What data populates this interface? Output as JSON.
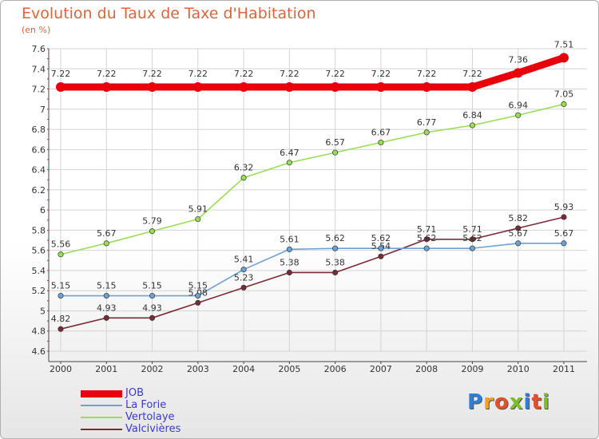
{
  "header": {
    "title": "Evolution du Taux de Taxe d'Habitation",
    "units": "(en %)"
  },
  "chart_data": {
    "type": "line",
    "title": "Evolution du Taux de Taxe d'Habitation",
    "ylabel": "(en %)",
    "xlabel": "",
    "x": [
      "2000",
      "2001",
      "2002",
      "2003",
      "2004",
      "2005",
      "2006",
      "2007",
      "2008",
      "2009",
      "2010",
      "2011"
    ],
    "ylim": [
      4.6,
      7.6
    ],
    "yticks": [
      "4.6",
      "4.8",
      "5",
      "5.2",
      "5.4",
      "5.6",
      "5.8",
      "6",
      "6.2",
      "6.4",
      "6.6",
      "6.8",
      "7",
      "7.2",
      "7.4",
      "7.6"
    ],
    "grid": true,
    "legend_position": "bottom-left",
    "series": [
      {
        "name": "JOB",
        "color": "#e8000b",
        "values": [
          7.22,
          7.22,
          7.22,
          7.22,
          7.22,
          7.22,
          7.22,
          7.22,
          7.22,
          7.22,
          7.36,
          7.51
        ],
        "labels": [
          "7.22",
          "7.22",
          "7.22",
          "7.22",
          "7.22",
          "7.22",
          "7.22",
          "7.22",
          "7.22",
          "7.22",
          "7.36",
          "7.51"
        ]
      },
      {
        "name": "La Forie",
        "color": "#6ea1d3",
        "values": [
          5.15,
          5.15,
          5.15,
          5.15,
          5.41,
          5.61,
          5.62,
          5.62,
          5.62,
          5.62,
          5.67,
          5.67
        ],
        "labels": [
          "5.15",
          "5.15",
          "5.15",
          "5.15",
          "5.41",
          "5.61",
          "5.62",
          "5.62",
          "5.62",
          "5.62",
          "5.67",
          "5.67"
        ]
      },
      {
        "name": "Vertolaye",
        "color": "#99dd55",
        "values": [
          5.56,
          5.67,
          5.79,
          5.91,
          6.32,
          6.47,
          6.57,
          6.67,
          6.77,
          6.84,
          6.94,
          7.05
        ],
        "labels": [
          "5.56",
          "5.67",
          "5.79",
          "5.91",
          "6.32",
          "6.47",
          "6.57",
          "6.67",
          "6.77",
          "6.84",
          "6.94",
          "7.05"
        ]
      },
      {
        "name": "Valcivières",
        "color": "#7a2a35",
        "values": [
          4.82,
          4.93,
          4.93,
          5.08,
          5.23,
          5.38,
          5.38,
          5.54,
          5.71,
          5.71,
          5.82,
          5.93
        ],
        "labels": [
          "4.82",
          "4.93",
          "4.93",
          "5.08",
          "5.23",
          "5.38",
          "5.38",
          "5.54",
          "5.71",
          "5.71",
          "5.82",
          "5.93"
        ]
      }
    ]
  },
  "logo": {
    "letters": [
      "P",
      "r",
      "o",
      "x",
      "i",
      "t",
      "i"
    ],
    "colors": [
      "#2f7fd6",
      "#f2a21b",
      "#e2512a",
      "#7dbe2e",
      "#2f7fd6",
      "#e2512a",
      "#7dbe2e"
    ]
  }
}
